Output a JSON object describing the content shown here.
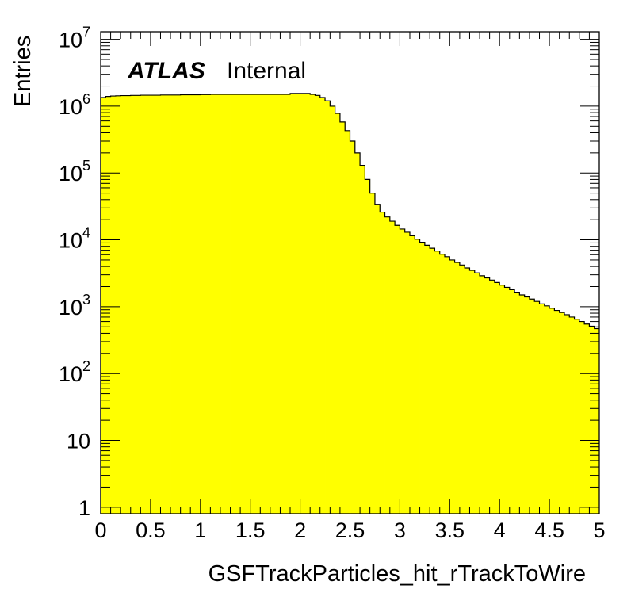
{
  "chart_data": {
    "type": "bar",
    "histogram": true,
    "xlabel": "GSFTrackParticles_hit_rTrackToWire",
    "ylabel": "Entries",
    "xlim": [
      0,
      5
    ],
    "ylim": [
      0.8,
      13000000.0
    ],
    "yscale": "log",
    "grid": false,
    "legend": "none",
    "fill_color": "#ffff00",
    "line_color": "#000000",
    "annotation": {
      "experiment": "ATLAS",
      "status": "Internal"
    },
    "bin_width": 0.05,
    "x_ticks": [
      "0",
      "0.5",
      "1",
      "1.5",
      "2",
      "2.5",
      "3",
      "3.5",
      "4",
      "4.5",
      "5"
    ],
    "x_tick_values": [
      0,
      0.5,
      1,
      1.5,
      2,
      2.5,
      3,
      3.5,
      4,
      4.5,
      5
    ],
    "y_ticks": [
      {
        "value": 10000000,
        "base": "10",
        "exp": "7"
      },
      {
        "value": 1000000,
        "base": "10",
        "exp": "6"
      },
      {
        "value": 100000,
        "base": "10",
        "exp": "5"
      },
      {
        "value": 10000,
        "base": "10",
        "exp": "4"
      },
      {
        "value": 1000,
        "base": "10",
        "exp": "3"
      },
      {
        "value": 100,
        "base": "10",
        "exp": "2"
      },
      {
        "value": 10,
        "base": "10",
        "exp": ""
      },
      {
        "value": 1,
        "base": "1",
        "exp": ""
      }
    ],
    "values": [
      1350000,
      1400000,
      1420000,
      1430000,
      1440000,
      1440000,
      1450000,
      1450000,
      1460000,
      1460000,
      1460000,
      1460000,
      1470000,
      1470000,
      1470000,
      1470000,
      1480000,
      1480000,
      1480000,
      1480000,
      1490000,
      1490000,
      1500000,
      1500000,
      1500000,
      1500000,
      1500000,
      1500000,
      1500000,
      1500000,
      1500000,
      1500000,
      1500000,
      1500000,
      1500000,
      1500000,
      1500000,
      1500000,
      1550000,
      1550000,
      1550000,
      1550000,
      1500000,
      1450000,
      1350000,
      1200000,
      1000000,
      780000,
      580000,
      430000,
      300000,
      200000,
      130000,
      80000,
      50000,
      34000,
      26000,
      22000,
      19000,
      16500,
      14500,
      13000,
      11500,
      10200,
      9200,
      8300,
      7500,
      6800,
      6100,
      5600,
      5000,
      4600,
      4200,
      3800,
      3500,
      3200,
      2900,
      2700,
      2500,
      2300,
      2100,
      1950,
      1800,
      1650,
      1500,
      1400,
      1300,
      1200,
      1100,
      1030,
      950,
      880,
      820,
      760,
      700,
      650,
      600,
      550,
      510,
      470,
      430,
      400,
      380,
      350,
      330,
      300
    ]
  }
}
